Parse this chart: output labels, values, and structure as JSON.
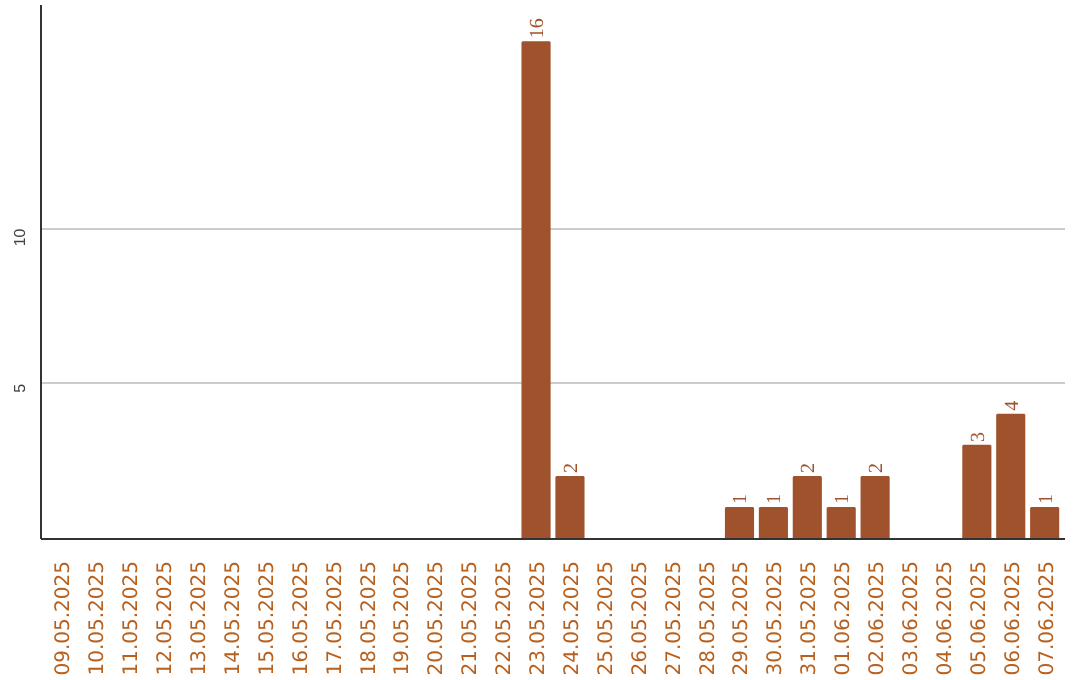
{
  "chart_data": {
    "type": "bar",
    "categories": [
      "09.05.2025",
      "10.05.2025",
      "11.05.2025",
      "12.05.2025",
      "13.05.2025",
      "14.05.2025",
      "15.05.2025",
      "16.05.2025",
      "17.05.2025",
      "18.05.2025",
      "19.05.2025",
      "20.05.2025",
      "21.05.2025",
      "22.05.2025",
      "23.05.2025",
      "24.05.2025",
      "25.05.2025",
      "26.05.2025",
      "27.05.2025",
      "28.05.2025",
      "29.05.2025",
      "30.05.2025",
      "31.05.2025",
      "01.06.2025",
      "02.06.2025",
      "03.06.2025",
      "04.06.2025",
      "05.06.2025",
      "06.06.2025",
      "07.06.2025"
    ],
    "values": [
      0,
      0,
      0,
      0,
      0,
      0,
      0,
      0,
      0,
      0,
      0,
      0,
      0,
      0,
      16,
      2,
      0,
      0,
      0,
      0,
      1,
      1,
      2,
      1,
      2,
      0,
      0,
      3,
      4,
      1
    ],
    "value_labels": [
      null,
      null,
      null,
      null,
      null,
      null,
      null,
      null,
      null,
      null,
      null,
      null,
      null,
      null,
      "16",
      "2",
      null,
      null,
      null,
      null,
      "1",
      "1",
      "2",
      "1",
      "2",
      null,
      null,
      "3",
      "4",
      "1"
    ],
    "color": "#a0522d",
    "ylim": [
      0,
      17.2
    ],
    "yticks": [
      5,
      10
    ],
    "grid": "y"
  }
}
